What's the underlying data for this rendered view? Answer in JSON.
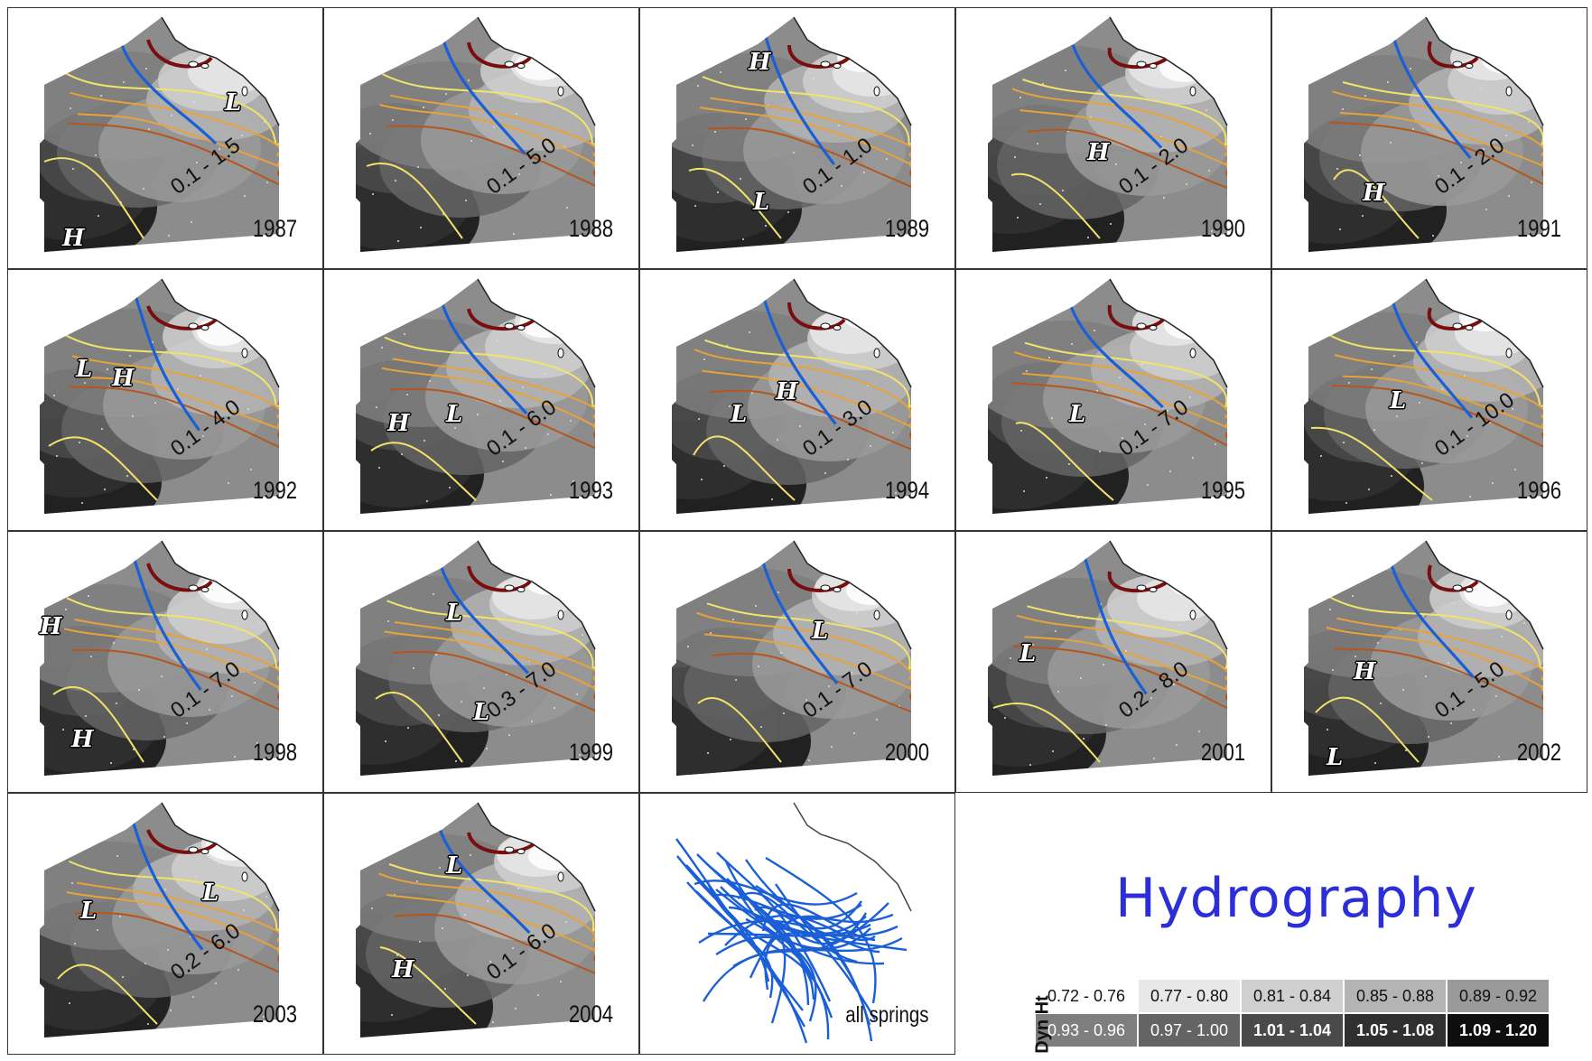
{
  "panels": [
    {
      "year": "1987",
      "range": "0.1 - 1.5",
      "labels": [
        {
          "t": "L"
        },
        {
          "t": "H"
        }
      ]
    },
    {
      "year": "1988",
      "range": "0.1 - 5.0",
      "labels": []
    },
    {
      "year": "1989",
      "range": "0.1 - 1.0",
      "labels": [
        {
          "t": "H"
        },
        {
          "t": "L"
        }
      ]
    },
    {
      "year": "1990",
      "range": "0.1 - 2.0",
      "labels": [
        {
          "t": "H"
        }
      ]
    },
    {
      "year": "1991",
      "range": "0.1 - 2.0",
      "labels": [
        {
          "t": "H"
        }
      ]
    },
    {
      "year": "1992",
      "range": "0.1 - 4.0",
      "labels": [
        {
          "t": "L"
        },
        {
          "t": "H"
        }
      ]
    },
    {
      "year": "1993",
      "range": "0.1 - 6.0",
      "labels": [
        {
          "t": "H"
        },
        {
          "t": "L"
        }
      ]
    },
    {
      "year": "1994",
      "range": "0.1 - 3.0",
      "labels": [
        {
          "t": "L"
        },
        {
          "t": "H"
        }
      ]
    },
    {
      "year": "1995",
      "range": "0.1 - 7.0",
      "labels": [
        {
          "t": "L"
        }
      ]
    },
    {
      "year": "1996",
      "range": "0.1 - 10.0",
      "labels": [
        {
          "t": "L"
        }
      ]
    },
    {
      "year": "1998",
      "range": "0.1 - 7.0",
      "labels": [
        {
          "t": "H"
        },
        {
          "t": "H"
        }
      ]
    },
    {
      "year": "1999",
      "range": "0.3 - 7.0",
      "labels": [
        {
          "t": "L"
        },
        {
          "t": "L"
        }
      ]
    },
    {
      "year": "2000",
      "range": "0.1 - 7.0",
      "labels": [
        {
          "t": "L"
        }
      ]
    },
    {
      "year": "2001",
      "range": "0.2 - 8.0",
      "labels": [
        {
          "t": "L"
        }
      ]
    },
    {
      "year": "2002",
      "range": "0.1 - 5.0",
      "labels": [
        {
          "t": "H"
        },
        {
          "t": "L"
        }
      ]
    },
    {
      "year": "2003",
      "range": "0.2 - 6.0",
      "labels": [
        {
          "t": "L"
        },
        {
          "t": "L"
        }
      ]
    },
    {
      "year": "2004",
      "range": "0.1 - 6.0",
      "labels": [
        {
          "t": "L"
        },
        {
          "t": "H"
        }
      ]
    },
    {
      "year": "all springs",
      "range": "",
      "labels": []
    }
  ],
  "title": "Hydrography",
  "legend": {
    "label": "Dyn Ht",
    "rows": [
      [
        "0.72 - 0.76",
        "0.77 - 0.80",
        "0.81 - 0.84",
        "0.85 - 0.88",
        "0.89 - 0.92"
      ],
      [
        "0.93 - 0.96",
        "0.97 - 1.00",
        "1.01 - 1.04",
        "1.05 - 1.08",
        "1.09 - 1.20"
      ]
    ],
    "colors": [
      [
        "#ffffff",
        "#e8e8e8",
        "#cfcfcf",
        "#b4b4b4",
        "#9a9a9a"
      ],
      [
        "#7e7e7e",
        "#646464",
        "#4a4a4a",
        "#303030",
        "#0e0e0e"
      ]
    ]
  },
  "colors": {
    "front": "#1a5fd6",
    "contour_light": "#f2e36a",
    "contour_mid": "#e8a23a",
    "contour_dark": "#b5561c",
    "contour_max": "#7a0e0e",
    "title": "#2c2fd9"
  }
}
